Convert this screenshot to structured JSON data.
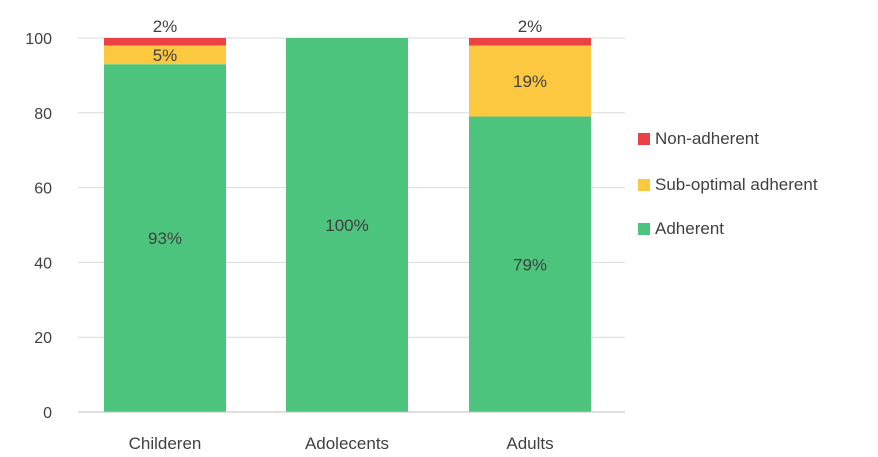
{
  "chart_data": {
    "type": "bar",
    "stacked": true,
    "categories": [
      "Childeren",
      "Adolecents",
      "Adults"
    ],
    "series": [
      {
        "name": "Adherent",
        "values": [
          93,
          100,
          79
        ],
        "labels": [
          "93%",
          "100%",
          "79%"
        ],
        "color": "#4dc47d"
      },
      {
        "name": "Sub-optimal adherent",
        "values": [
          5,
          0,
          19
        ],
        "labels": [
          "5%",
          "",
          "19%"
        ],
        "color": "#fcc83f"
      },
      {
        "name": "Non-adherent",
        "values": [
          2,
          0,
          2
        ],
        "labels": [
          "2%",
          "",
          "2%"
        ],
        "color": "#ec4144"
      }
    ],
    "y_ticks": [
      "0",
      "20",
      "40",
      "60",
      "80",
      "100"
    ],
    "ylim": [
      0,
      100
    ],
    "legend_order": [
      "Non-adherent",
      "Sub-optimal adherent",
      "Adherent"
    ],
    "legend_position": "right",
    "grid": true,
    "gridline_color": "#d9d9d9"
  }
}
